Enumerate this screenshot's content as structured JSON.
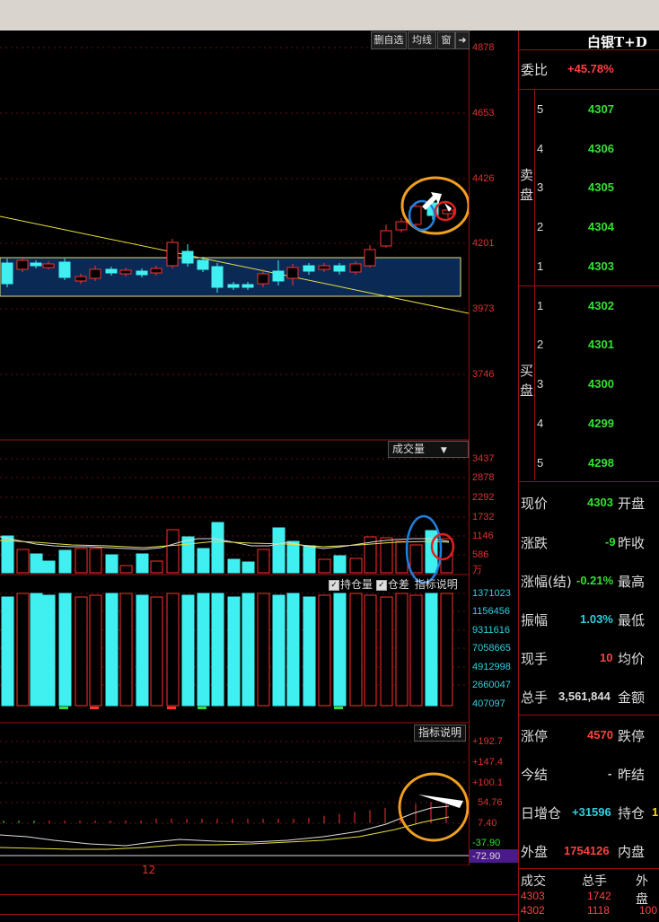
{
  "symbol": "白银T+D",
  "toolbar": {
    "buttons": [
      "删自选",
      "均线",
      "窗"
    ],
    "arrow_icon": "exit-arrow-icon"
  },
  "price_axis": [
    "4878",
    "4653",
    "4426",
    "4201",
    "3973",
    "3746"
  ],
  "volume_panel": {
    "label": "成交量",
    "axis": [
      "3437",
      "2878",
      "2292",
      "1732",
      "1146",
      "586",
      "万"
    ]
  },
  "position_panel": {
    "legend": [
      {
        "checked": true,
        "label": "持仓量"
      },
      {
        "checked": true,
        "label": "仓差"
      },
      {
        "checked": false,
        "label": "指标说明"
      }
    ],
    "axis": [
      "1371023",
      "1156456",
      "9311616",
      "7058665",
      "4912998",
      "2660047",
      "407097"
    ]
  },
  "indicator_panel": {
    "label": "指标说明",
    "axis": [
      "+192.7",
      "+147.4",
      "+100.1",
      "54.76",
      "7.40",
      "-37.90",
      "-72.90"
    ]
  },
  "x_label": "12",
  "weibi": {
    "label": "委比",
    "value": "+45.78%"
  },
  "sell_side_label": "卖盘",
  "buy_side_label": "买盘",
  "sell_orders": [
    {
      "level": "5",
      "price": "4307"
    },
    {
      "level": "4",
      "price": "4306"
    },
    {
      "level": "3",
      "price": "4305"
    },
    {
      "level": "2",
      "price": "4304"
    },
    {
      "level": "1",
      "price": "4303"
    }
  ],
  "buy_orders": [
    {
      "level": "1",
      "price": "4302"
    },
    {
      "level": "2",
      "price": "4301"
    },
    {
      "level": "3",
      "price": "4300"
    },
    {
      "level": "4",
      "price": "4299"
    },
    {
      "level": "5",
      "price": "4298"
    }
  ],
  "quote": {
    "xianjia": {
      "label": "现价",
      "value": "4303",
      "right_label": "开盘"
    },
    "zhangdie": {
      "label": "涨跌",
      "value": "-9",
      "right_label": "昨收"
    },
    "zhangfu": {
      "label": "涨幅(结)",
      "value": "-0.21%",
      "right_label": "最高"
    },
    "zhenfu": {
      "label": "振幅",
      "value": "1.03%",
      "right_label": "最低"
    },
    "xianshou": {
      "label": "现手",
      "value": "10",
      "right_label": "均价"
    },
    "zongshou": {
      "label": "总手",
      "value": "3,561,844",
      "right_label": "金额"
    },
    "zhangting": {
      "label": "涨停",
      "value": "4570",
      "right_label": "跌停"
    },
    "jinjie": {
      "label": "今结",
      "value": "-",
      "right_label": "昨结"
    },
    "rizengcang": {
      "label": "日增仓",
      "value": "+31596",
      "right_label": "持仓",
      "right_value": "1"
    },
    "waipan": {
      "label": "外盘",
      "value": "1754126",
      "right_label": "内盘"
    }
  },
  "trades": {
    "headers": [
      "成交",
      "总手",
      "外盘"
    ],
    "rows": [
      [
        "4303",
        "1742",
        ""
      ],
      [
        "4302",
        "1118",
        "100"
      ]
    ]
  }
}
